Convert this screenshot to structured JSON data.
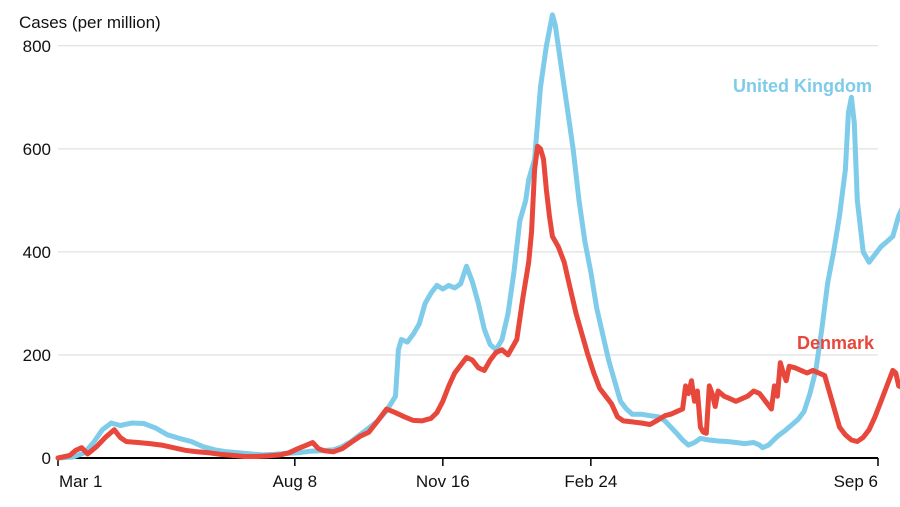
{
  "chart_data": {
    "type": "line",
    "ylabel": "Cases (per million)",
    "ylim": [
      0,
      850
    ],
    "yticks": [
      0,
      200,
      400,
      600,
      800
    ],
    "x_tick_labels": [
      "Mar 1",
      "Aug 8",
      "Nov 16",
      "Feb 24",
      "Sep 6"
    ],
    "x_tick_days": [
      0,
      160,
      260,
      360,
      554
    ],
    "grid": true,
    "series": [
      {
        "name": "United Kingdom",
        "color": "#7ecbea",
        "points": [
          [
            0,
            0
          ],
          [
            10,
            2
          ],
          [
            18,
            10
          ],
          [
            24,
            30
          ],
          [
            30,
            55
          ],
          [
            36,
            68
          ],
          [
            42,
            63
          ],
          [
            50,
            68
          ],
          [
            58,
            67
          ],
          [
            66,
            58
          ],
          [
            74,
            45
          ],
          [
            82,
            38
          ],
          [
            90,
            32
          ],
          [
            98,
            22
          ],
          [
            106,
            16
          ],
          [
            114,
            12
          ],
          [
            122,
            10
          ],
          [
            130,
            8
          ],
          [
            138,
            6
          ],
          [
            146,
            7
          ],
          [
            154,
            9
          ],
          [
            162,
            10
          ],
          [
            170,
            13
          ],
          [
            178,
            14
          ],
          [
            186,
            16
          ],
          [
            192,
            22
          ],
          [
            198,
            32
          ],
          [
            204,
            45
          ],
          [
            210,
            58
          ],
          [
            216,
            72
          ],
          [
            222,
            92
          ],
          [
            228,
            120
          ],
          [
            230,
            210
          ],
          [
            232,
            230
          ],
          [
            236,
            225
          ],
          [
            240,
            240
          ],
          [
            244,
            260
          ],
          [
            248,
            300
          ],
          [
            252,
            320
          ],
          [
            256,
            335
          ],
          [
            260,
            328
          ],
          [
            264,
            335
          ],
          [
            268,
            330
          ],
          [
            272,
            338
          ],
          [
            276,
            372
          ],
          [
            280,
            342
          ],
          [
            284,
            300
          ],
          [
            288,
            250
          ],
          [
            292,
            220
          ],
          [
            296,
            210
          ],
          [
            300,
            230
          ],
          [
            304,
            280
          ],
          [
            308,
            360
          ],
          [
            312,
            460
          ],
          [
            316,
            500
          ],
          [
            318,
            540
          ],
          [
            322,
            580
          ],
          [
            326,
            720
          ],
          [
            330,
            800
          ],
          [
            334,
            860
          ],
          [
            336,
            840
          ],
          [
            340,
            760
          ],
          [
            344,
            680
          ],
          [
            348,
            600
          ],
          [
            352,
            500
          ],
          [
            356,
            420
          ],
          [
            360,
            360
          ],
          [
            364,
            290
          ],
          [
            368,
            240
          ],
          [
            372,
            190
          ],
          [
            376,
            150
          ],
          [
            380,
            110
          ],
          [
            384,
            95
          ],
          [
            388,
            85
          ],
          [
            394,
            85
          ],
          [
            400,
            82
          ],
          [
            406,
            80
          ],
          [
            410,
            72
          ],
          [
            414,
            60
          ],
          [
            418,
            48
          ],
          [
            422,
            35
          ],
          [
            426,
            25
          ],
          [
            430,
            30
          ],
          [
            434,
            38
          ],
          [
            440,
            35
          ],
          [
            446,
            33
          ],
          [
            452,
            32
          ],
          [
            458,
            30
          ],
          [
            464,
            28
          ],
          [
            470,
            30
          ],
          [
            474,
            25
          ],
          [
            476,
            20
          ],
          [
            480,
            25
          ],
          [
            486,
            42
          ],
          [
            492,
            55
          ],
          [
            496,
            65
          ],
          [
            500,
            75
          ],
          [
            504,
            90
          ],
          [
            508,
            125
          ],
          [
            512,
            170
          ],
          [
            516,
            250
          ],
          [
            520,
            340
          ],
          [
            524,
            400
          ],
          [
            528,
            470
          ],
          [
            532,
            560
          ],
          [
            534,
            670
          ],
          [
            536,
            700
          ],
          [
            538,
            650
          ],
          [
            540,
            500
          ],
          [
            544,
            400
          ],
          [
            548,
            380
          ],
          [
            552,
            395
          ],
          [
            556,
            410
          ],
          [
            560,
            420
          ],
          [
            564,
            430
          ],
          [
            568,
            470
          ],
          [
            572,
            495
          ],
          [
            576,
            500
          ],
          [
            580,
            495
          ],
          [
            584,
            505
          ],
          [
            586,
            520
          ],
          [
            587,
            552
          ]
        ]
      },
      {
        "name": "Denmark",
        "color": "#e8473b",
        "points": [
          [
            0,
            0
          ],
          [
            8,
            5
          ],
          [
            12,
            15
          ],
          [
            16,
            20
          ],
          [
            20,
            8
          ],
          [
            26,
            22
          ],
          [
            32,
            40
          ],
          [
            38,
            55
          ],
          [
            42,
            40
          ],
          [
            46,
            32
          ],
          [
            54,
            30
          ],
          [
            62,
            28
          ],
          [
            70,
            25
          ],
          [
            78,
            20
          ],
          [
            86,
            15
          ],
          [
            94,
            12
          ],
          [
            102,
            10
          ],
          [
            110,
            7
          ],
          [
            118,
            5
          ],
          [
            126,
            3
          ],
          [
            134,
            3
          ],
          [
            142,
            4
          ],
          [
            150,
            6
          ],
          [
            156,
            10
          ],
          [
            162,
            18
          ],
          [
            168,
            25
          ],
          [
            172,
            30
          ],
          [
            176,
            18
          ],
          [
            180,
            14
          ],
          [
            186,
            12
          ],
          [
            192,
            18
          ],
          [
            198,
            30
          ],
          [
            204,
            42
          ],
          [
            210,
            50
          ],
          [
            216,
            72
          ],
          [
            222,
            95
          ],
          [
            228,
            88
          ],
          [
            234,
            80
          ],
          [
            240,
            73
          ],
          [
            246,
            72
          ],
          [
            252,
            77
          ],
          [
            256,
            88
          ],
          [
            260,
            110
          ],
          [
            264,
            140
          ],
          [
            268,
            165
          ],
          [
            272,
            180
          ],
          [
            276,
            195
          ],
          [
            280,
            190
          ],
          [
            284,
            175
          ],
          [
            288,
            170
          ],
          [
            292,
            190
          ],
          [
            296,
            205
          ],
          [
            300,
            210
          ],
          [
            304,
            200
          ],
          [
            306,
            210
          ],
          [
            310,
            230
          ],
          [
            314,
            310
          ],
          [
            318,
            380
          ],
          [
            320,
            440
          ],
          [
            322,
            560
          ],
          [
            324,
            605
          ],
          [
            326,
            600
          ],
          [
            328,
            580
          ],
          [
            330,
            520
          ],
          [
            332,
            470
          ],
          [
            334,
            430
          ],
          [
            338,
            410
          ],
          [
            342,
            380
          ],
          [
            346,
            330
          ],
          [
            350,
            280
          ],
          [
            354,
            240
          ],
          [
            358,
            200
          ],
          [
            362,
            165
          ],
          [
            366,
            135
          ],
          [
            370,
            120
          ],
          [
            374,
            105
          ],
          [
            378,
            80
          ],
          [
            382,
            72
          ],
          [
            388,
            70
          ],
          [
            394,
            68
          ],
          [
            400,
            65
          ],
          [
            406,
            75
          ],
          [
            410,
            82
          ],
          [
            414,
            85
          ],
          [
            418,
            90
          ],
          [
            422,
            95
          ],
          [
            424,
            140
          ],
          [
            426,
            125
          ],
          [
            428,
            150
          ],
          [
            430,
            110
          ],
          [
            432,
            130
          ],
          [
            434,
            60
          ],
          [
            436,
            50
          ],
          [
            438,
            48
          ],
          [
            440,
            140
          ],
          [
            442,
            125
          ],
          [
            444,
            100
          ],
          [
            446,
            130
          ],
          [
            450,
            120
          ],
          [
            454,
            115
          ],
          [
            458,
            110
          ],
          [
            462,
            115
          ],
          [
            466,
            120
          ],
          [
            470,
            130
          ],
          [
            474,
            125
          ],
          [
            478,
            110
          ],
          [
            482,
            95
          ],
          [
            484,
            140
          ],
          [
            486,
            120
          ],
          [
            488,
            185
          ],
          [
            490,
            165
          ],
          [
            492,
            150
          ],
          [
            494,
            178
          ],
          [
            498,
            175
          ],
          [
            502,
            170
          ],
          [
            506,
            165
          ],
          [
            510,
            170
          ],
          [
            514,
            165
          ],
          [
            518,
            160
          ],
          [
            520,
            140
          ],
          [
            524,
            100
          ],
          [
            528,
            60
          ],
          [
            532,
            45
          ],
          [
            536,
            35
          ],
          [
            540,
            32
          ],
          [
            544,
            40
          ],
          [
            548,
            55
          ],
          [
            552,
            80
          ],
          [
            556,
            110
          ],
          [
            560,
            140
          ],
          [
            564,
            170
          ],
          [
            566,
            165
          ],
          [
            568,
            140
          ],
          [
            572,
            135
          ],
          [
            576,
            150
          ],
          [
            580,
            148
          ],
          [
            584,
            160
          ],
          [
            588,
            165
          ],
          [
            592,
            170
          ],
          [
            596,
            168
          ],
          [
            600,
            160
          ],
          [
            602,
            140
          ],
          [
            604,
            120
          ],
          [
            606,
            112
          ]
        ]
      }
    ]
  }
}
